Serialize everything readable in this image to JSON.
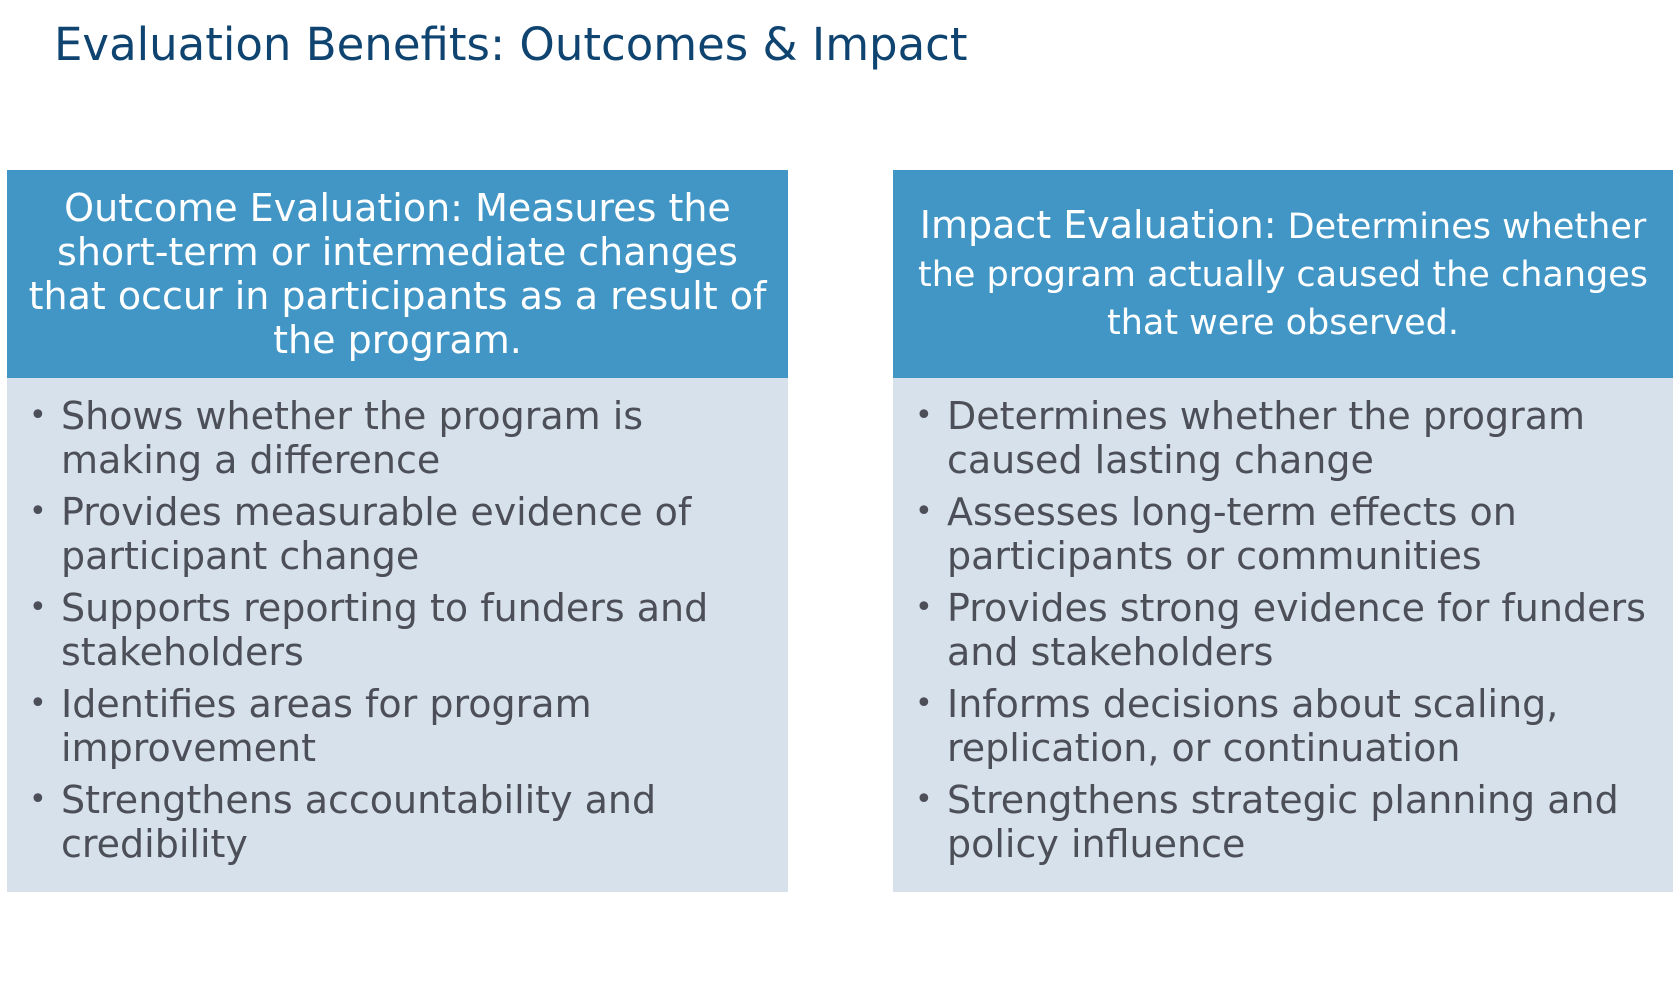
{
  "title": "Evaluation Benefits: Outcomes & Impact",
  "bullet_glyph": "•",
  "cards": [
    {
      "header": "Outcome Evaluation: Measures the short-term or intermediate changes that occur in participants as a result of the program.",
      "bullets": [
        "Shows whether the program is making a difference",
        "Provides measurable evidence of participant change",
        "Supports reporting to funders and stakeholders",
        "Identifies areas for program improvement",
        "Strengthens accountability and credibility"
      ]
    },
    {
      "header_strong": "Impact Evaluation:",
      "header_rest": " Determines whether the program actually caused the changes that were observed.",
      "bullets": [
        "Determines whether the program caused lasting change",
        "Assesses long-term effects on participants or communities",
        "Provides strong evidence for funders and stakeholders",
        "Informs decisions about scaling, replication, or continuation",
        "Strengthens strategic planning and policy influence"
      ]
    }
  ],
  "colors": {
    "title": "#0f4470",
    "header_bg": "#4196c6",
    "body_bg": "#d6e1ec",
    "body_text": "#4d4f58",
    "header_text": "#ffffff"
  }
}
